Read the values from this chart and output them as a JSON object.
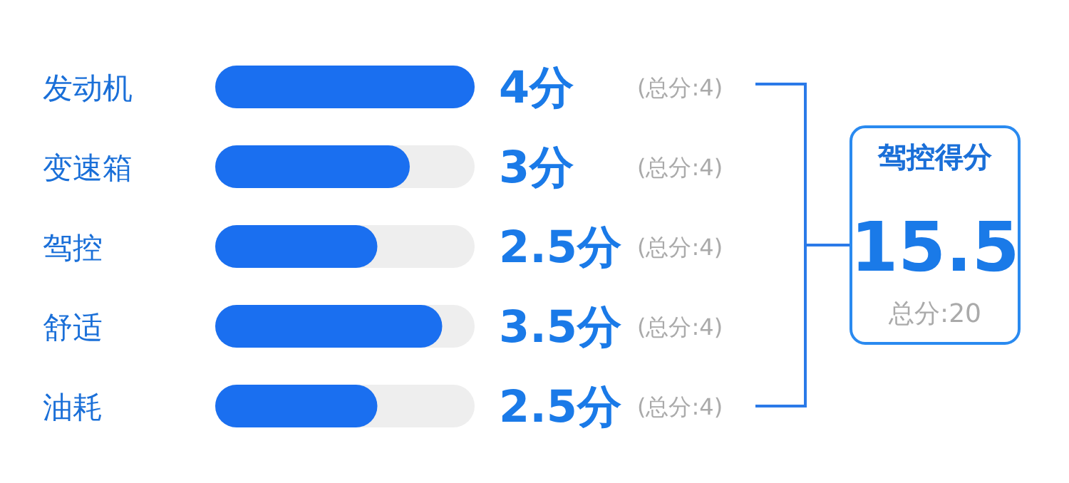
{
  "chart_data": {
    "type": "bar",
    "orientation": "horizontal",
    "categories": [
      "发动机",
      "变速箱",
      "驾控",
      "舒适",
      "油耗"
    ],
    "values": [
      4,
      3,
      2.5,
      3.5,
      2.5
    ],
    "value_labels": [
      "4分",
      "3分",
      "2.5分",
      "3.5分",
      "2.5分"
    ],
    "color": "#1a6ff0",
    "xlim": [
      0,
      4
    ],
    "tick_labels": "y",
    "annotations": [
      "(总分:4)",
      "(总分:4)",
      "(总分:4)",
      "(总分:4)",
      "(总分:4)",
      "驾控得分",
      "15.5",
      "总分:20"
    ]
  }
}
